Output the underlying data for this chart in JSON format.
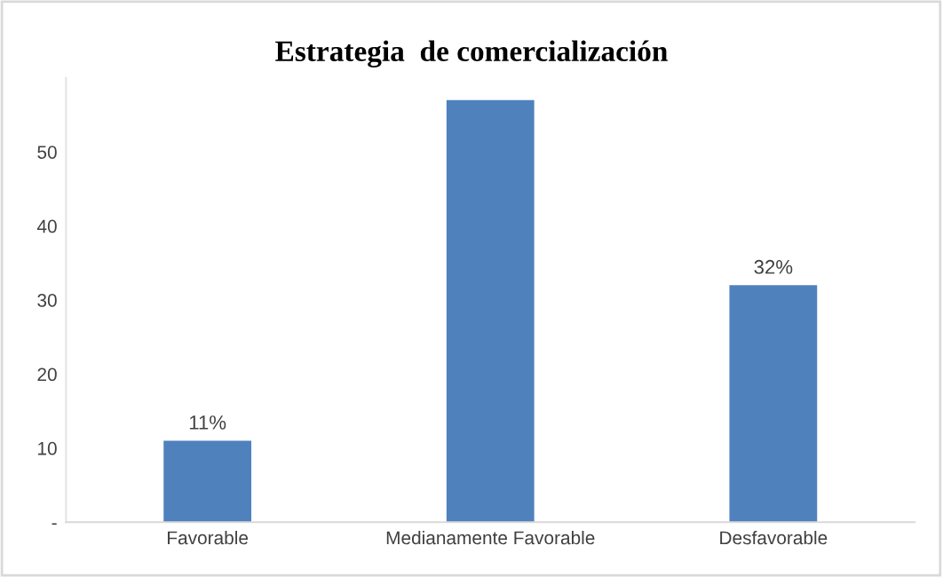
{
  "chart_data": {
    "type": "bar",
    "title": "Estrategia  de comercialización",
    "categories": [
      "Favorable",
      "Medianamente Favorable",
      "Desfavorable"
    ],
    "values": [
      11,
      57,
      32
    ],
    "color": "#4f81bd",
    "value_labels": [
      "11%",
      null,
      "32%"
    ],
    "ylim": [
      0,
      60
    ],
    "yticks": [
      {
        "value": 0,
        "label": "-"
      },
      10,
      20,
      30,
      40,
      50
    ],
    "grid": false,
    "legend": false
  }
}
